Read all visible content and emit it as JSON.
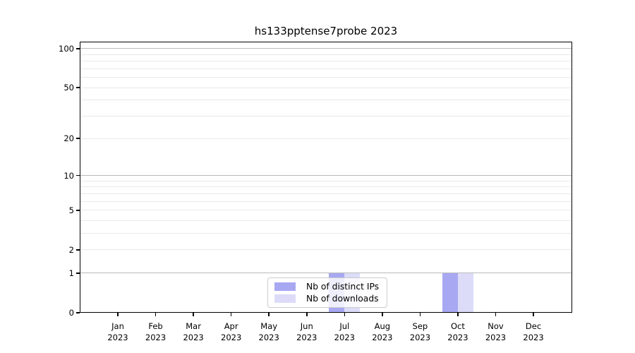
{
  "chart_data": {
    "type": "bar",
    "title": "hs133pptense7probe 2023",
    "categories": [
      "Jan 2023",
      "Feb 2023",
      "Mar 2023",
      "Apr 2023",
      "May 2023",
      "Jun 2023",
      "Jul 2023",
      "Aug 2023",
      "Sep 2023",
      "Oct 2023",
      "Nov 2023",
      "Dec 2023"
    ],
    "series": [
      {
        "name": "Nb of distinct IPs",
        "color": "#a8a8f2",
        "values": [
          0,
          0,
          0,
          0,
          0,
          0,
          1,
          0,
          0,
          1,
          0,
          0
        ]
      },
      {
        "name": "Nb of downloads",
        "color": "#dcdcf9",
        "values": [
          0,
          0,
          0,
          0,
          0,
          0,
          1,
          0,
          0,
          1,
          0,
          0
        ]
      }
    ],
    "xlabel": "",
    "ylabel": "",
    "yscale": "log1p",
    "ylim": [
      0,
      113
    ],
    "yticks": [
      0,
      1,
      2,
      5,
      10,
      20,
      50,
      100
    ],
    "major_gridlines": [
      1,
      10,
      100
    ],
    "minor_gridlines": [
      2,
      3,
      4,
      5,
      6,
      7,
      8,
      9,
      20,
      30,
      40,
      50,
      60,
      70,
      80,
      90
    ],
    "grid": true,
    "legend_position": "lower center"
  },
  "colors": {
    "background": "#ffffff",
    "spine": "#000000",
    "grid_major": "#b9b9b9",
    "grid_minor": "#e9e9e9",
    "text": "#000000",
    "legend_border": "#cccccc"
  }
}
